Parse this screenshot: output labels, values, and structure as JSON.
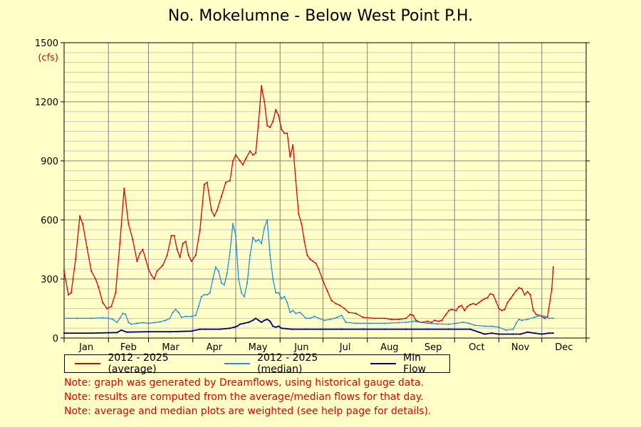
{
  "chart_data": {
    "type": "line",
    "title": "No. Mokelumne - Below West Point P.H.",
    "ylabel": "(cfs)",
    "xlabel": "",
    "ylim": [
      0,
      1500
    ],
    "yticks": [
      0,
      300,
      600,
      900,
      1200,
      1500
    ],
    "x_unit": "day of year",
    "xlim": [
      1,
      366
    ],
    "months": [
      "Jan",
      "Feb",
      "Mar",
      "Apr",
      "May",
      "Jun",
      "Jul",
      "Aug",
      "Sep",
      "Oct",
      "Nov",
      "Dec"
    ],
    "grid": true,
    "legend_position": "bottom",
    "series": [
      {
        "name": "2012 - 2025 (average)",
        "color": "#e00000",
        "points": [
          [
            1,
            340
          ],
          [
            4,
            220
          ],
          [
            6,
            230
          ],
          [
            9,
            400
          ],
          [
            12,
            620
          ],
          [
            14,
            580
          ],
          [
            17,
            460
          ],
          [
            20,
            340
          ],
          [
            23,
            300
          ],
          [
            25,
            260
          ],
          [
            28,
            180
          ],
          [
            31,
            150
          ],
          [
            34,
            160
          ],
          [
            37,
            230
          ],
          [
            40,
            480
          ],
          [
            43,
            760
          ],
          [
            46,
            580
          ],
          [
            49,
            500
          ],
          [
            52,
            390
          ],
          [
            54,
            430
          ],
          [
            56,
            450
          ],
          [
            58,
            400
          ],
          [
            60,
            350
          ],
          [
            62,
            320
          ],
          [
            64,
            300
          ],
          [
            66,
            340
          ],
          [
            70,
            370
          ],
          [
            73,
            420
          ],
          [
            76,
            520
          ],
          [
            78,
            520
          ],
          [
            80,
            450
          ],
          [
            82,
            410
          ],
          [
            84,
            480
          ],
          [
            86,
            490
          ],
          [
            88,
            420
          ],
          [
            90,
            390
          ],
          [
            93,
            420
          ],
          [
            96,
            550
          ],
          [
            99,
            780
          ],
          [
            101,
            790
          ],
          [
            104,
            650
          ],
          [
            106,
            620
          ],
          [
            108,
            650
          ],
          [
            111,
            720
          ],
          [
            114,
            790
          ],
          [
            117,
            800
          ],
          [
            119,
            900
          ],
          [
            121,
            930
          ],
          [
            124,
            900
          ],
          [
            126,
            880
          ],
          [
            128,
            910
          ],
          [
            131,
            950
          ],
          [
            133,
            930
          ],
          [
            135,
            940
          ],
          [
            137,
            1100
          ],
          [
            139,
            1280
          ],
          [
            141,
            1200
          ],
          [
            143,
            1080
          ],
          [
            145,
            1070
          ],
          [
            147,
            1100
          ],
          [
            149,
            1160
          ],
          [
            151,
            1130
          ],
          [
            153,
            1060
          ],
          [
            155,
            1040
          ],
          [
            157,
            1040
          ],
          [
            159,
            920
          ],
          [
            161,
            980
          ],
          [
            163,
            800
          ],
          [
            165,
            630
          ],
          [
            167,
            580
          ],
          [
            169,
            490
          ],
          [
            171,
            420
          ],
          [
            173,
            400
          ],
          [
            175,
            390
          ],
          [
            177,
            380
          ],
          [
            179,
            350
          ],
          [
            182,
            290
          ],
          [
            185,
            240
          ],
          [
            188,
            190
          ],
          [
            191,
            175
          ],
          [
            194,
            165
          ],
          [
            197,
            150
          ],
          [
            200,
            130
          ],
          [
            205,
            125
          ],
          [
            210,
            105
          ],
          [
            218,
            100
          ],
          [
            225,
            100
          ],
          [
            230,
            95
          ],
          [
            235,
            95
          ],
          [
            240,
            100
          ],
          [
            243,
            120
          ],
          [
            245,
            115
          ],
          [
            247,
            90
          ],
          [
            250,
            80
          ],
          [
            255,
            85
          ],
          [
            258,
            80
          ],
          [
            260,
            90
          ],
          [
            263,
            85
          ],
          [
            265,
            90
          ],
          [
            268,
            120
          ],
          [
            270,
            140
          ],
          [
            272,
            145
          ],
          [
            275,
            140
          ],
          [
            277,
            160
          ],
          [
            279,
            165
          ],
          [
            281,
            140
          ],
          [
            283,
            160
          ],
          [
            285,
            170
          ],
          [
            287,
            175
          ],
          [
            289,
            170
          ],
          [
            291,
            180
          ],
          [
            293,
            190
          ],
          [
            295,
            200
          ],
          [
            297,
            205
          ],
          [
            299,
            225
          ],
          [
            301,
            220
          ],
          [
            303,
            185
          ],
          [
            305,
            150
          ],
          [
            307,
            140
          ],
          [
            309,
            145
          ],
          [
            311,
            180
          ],
          [
            313,
            200
          ],
          [
            315,
            220
          ],
          [
            317,
            240
          ],
          [
            319,
            255
          ],
          [
            321,
            250
          ],
          [
            323,
            220
          ],
          [
            325,
            235
          ],
          [
            327,
            220
          ],
          [
            329,
            140
          ],
          [
            331,
            120
          ],
          [
            333,
            115
          ],
          [
            335,
            110
          ],
          [
            337,
            100
          ],
          [
            339,
            110
          ],
          [
            342,
            250
          ],
          [
            343,
            360
          ]
        ]
      },
      {
        "name": "2012 - 2025 (median)",
        "color": "#2090e0",
        "points": [
          [
            1,
            100
          ],
          [
            10,
            100
          ],
          [
            20,
            100
          ],
          [
            28,
            103
          ],
          [
            32,
            100
          ],
          [
            35,
            95
          ],
          [
            38,
            80
          ],
          [
            40,
            100
          ],
          [
            42,
            125
          ],
          [
            44,
            120
          ],
          [
            46,
            80
          ],
          [
            48,
            70
          ],
          [
            52,
            75
          ],
          [
            56,
            78
          ],
          [
            60,
            75
          ],
          [
            64,
            78
          ],
          [
            68,
            82
          ],
          [
            72,
            90
          ],
          [
            75,
            100
          ],
          [
            77,
            130
          ],
          [
            79,
            145
          ],
          [
            81,
            130
          ],
          [
            83,
            105
          ],
          [
            86,
            110
          ],
          [
            90,
            110
          ],
          [
            93,
            115
          ],
          [
            95,
            160
          ],
          [
            97,
            210
          ],
          [
            99,
            220
          ],
          [
            101,
            220
          ],
          [
            103,
            230
          ],
          [
            105,
            300
          ],
          [
            107,
            360
          ],
          [
            109,
            340
          ],
          [
            111,
            280
          ],
          [
            113,
            270
          ],
          [
            115,
            330
          ],
          [
            117,
            440
          ],
          [
            119,
            580
          ],
          [
            121,
            520
          ],
          [
            123,
            300
          ],
          [
            125,
            230
          ],
          [
            127,
            210
          ],
          [
            129,
            280
          ],
          [
            131,
            420
          ],
          [
            133,
            510
          ],
          [
            135,
            490
          ],
          [
            137,
            500
          ],
          [
            139,
            480
          ],
          [
            141,
            560
          ],
          [
            143,
            600
          ],
          [
            145,
            420
          ],
          [
            147,
            300
          ],
          [
            149,
            230
          ],
          [
            151,
            230
          ],
          [
            153,
            200
          ],
          [
            155,
            210
          ],
          [
            157,
            180
          ],
          [
            159,
            130
          ],
          [
            161,
            140
          ],
          [
            163,
            125
          ],
          [
            166,
            130
          ],
          [
            170,
            100
          ],
          [
            173,
            100
          ],
          [
            176,
            110
          ],
          [
            179,
            100
          ],
          [
            183,
            90
          ],
          [
            187,
            95
          ],
          [
            190,
            100
          ],
          [
            192,
            105
          ],
          [
            195,
            115
          ],
          [
            198,
            80
          ],
          [
            205,
            75
          ],
          [
            215,
            75
          ],
          [
            225,
            75
          ],
          [
            235,
            78
          ],
          [
            240,
            80
          ],
          [
            245,
            85
          ],
          [
            250,
            80
          ],
          [
            255,
            75
          ],
          [
            262,
            72
          ],
          [
            270,
            70
          ],
          [
            275,
            75
          ],
          [
            280,
            80
          ],
          [
            284,
            75
          ],
          [
            288,
            65
          ],
          [
            295,
            60
          ],
          [
            300,
            60
          ],
          [
            305,
            55
          ],
          [
            310,
            40
          ],
          [
            315,
            45
          ],
          [
            317,
            75
          ],
          [
            319,
            95
          ],
          [
            321,
            90
          ],
          [
            325,
            95
          ],
          [
            330,
            105
          ],
          [
            334,
            115
          ],
          [
            337,
            110
          ],
          [
            340,
            100
          ],
          [
            343,
            100
          ]
        ]
      },
      {
        "name": "Min Flow",
        "color": "#000080",
        "points": [
          [
            1,
            25
          ],
          [
            20,
            25
          ],
          [
            38,
            28
          ],
          [
            41,
            40
          ],
          [
            43,
            35
          ],
          [
            45,
            30
          ],
          [
            60,
            32
          ],
          [
            75,
            32
          ],
          [
            90,
            35
          ],
          [
            96,
            45
          ],
          [
            100,
            45
          ],
          [
            110,
            45
          ],
          [
            117,
            50
          ],
          [
            120,
            55
          ],
          [
            122,
            60
          ],
          [
            124,
            70
          ],
          [
            127,
            75
          ],
          [
            130,
            80
          ],
          [
            133,
            90
          ],
          [
            135,
            100
          ],
          [
            137,
            90
          ],
          [
            139,
            80
          ],
          [
            141,
            90
          ],
          [
            143,
            95
          ],
          [
            145,
            85
          ],
          [
            147,
            60
          ],
          [
            149,
            55
          ],
          [
            151,
            60
          ],
          [
            153,
            50
          ],
          [
            160,
            45
          ],
          [
            170,
            45
          ],
          [
            180,
            45
          ],
          [
            195,
            45
          ],
          [
            210,
            45
          ],
          [
            225,
            45
          ],
          [
            240,
            45
          ],
          [
            255,
            45
          ],
          [
            270,
            45
          ],
          [
            285,
            45
          ],
          [
            295,
            20
          ],
          [
            300,
            25
          ],
          [
            305,
            20
          ],
          [
            315,
            20
          ],
          [
            320,
            20
          ],
          [
            325,
            30
          ],
          [
            330,
            25
          ],
          [
            335,
            20
          ],
          [
            340,
            25
          ],
          [
            343,
            25
          ]
        ]
      }
    ]
  },
  "legend": {
    "items": [
      {
        "label": "2012 - 2025 (average)",
        "color": "#e00000"
      },
      {
        "label": "2012 - 2025 (median)",
        "color": "#2090e0"
      },
      {
        "label": "Min Flow",
        "color": "#000080"
      }
    ]
  },
  "notes": [
    "Note: graph was generated by Dreamflows, using historical gauge data.",
    "Note: results are computed from the average/median flows for that day.",
    "Note: average and median plots are weighted (see help page for details)."
  ],
  "colors": {
    "background": "#ffffc8",
    "plot_background": "#ffffc8",
    "note_text": "#e00000",
    "ylabel_unit": "#e00000"
  }
}
